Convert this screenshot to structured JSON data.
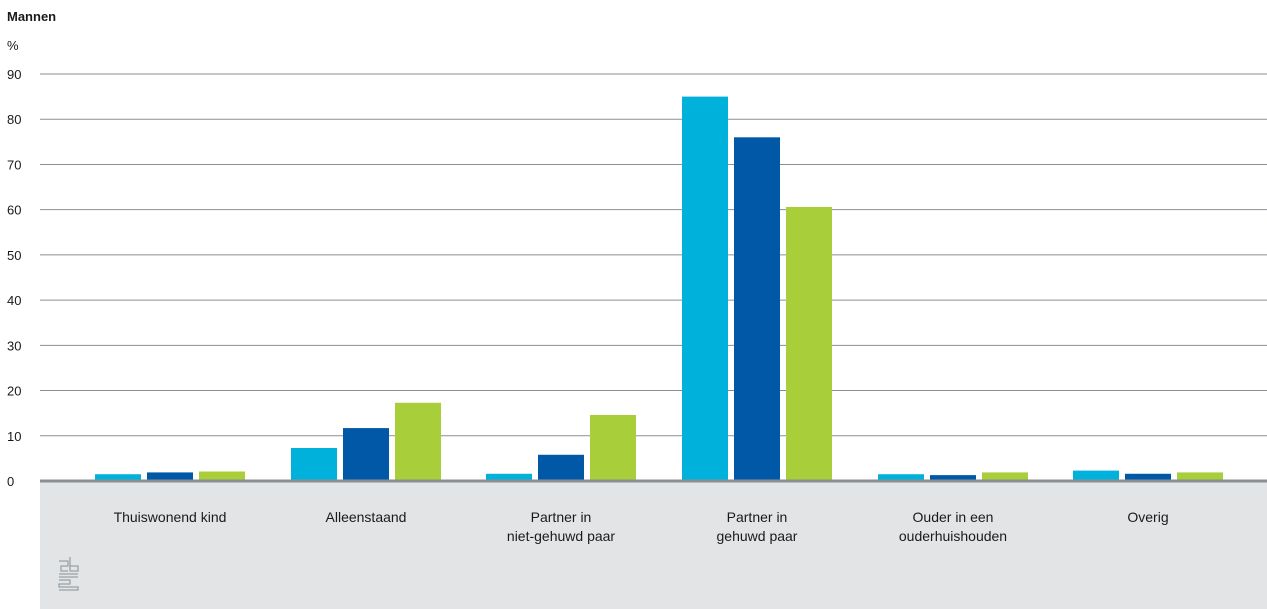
{
  "chart_data": {
    "type": "bar",
    "title": "Mannen",
    "ylabel": "%",
    "xlabel": "",
    "ylim": [
      0,
      90
    ],
    "yticks": [
      0,
      10,
      20,
      30,
      40,
      50,
      60,
      70,
      80,
      90
    ],
    "grid": true,
    "categories": [
      [
        "Thuiswonend kind"
      ],
      [
        "Alleenstaand"
      ],
      [
        "Partner in",
        "niet-gehuwd paar"
      ],
      [
        "Partner in",
        "gehuwd paar"
      ],
      [
        "Ouder in een",
        "ouderhuishouden"
      ],
      [
        "Overig"
      ]
    ],
    "series": [
      {
        "values": [
          1.5,
          7.3,
          1.6,
          85.0,
          1.5,
          2.3
        ],
        "color": "#00b1dc"
      },
      {
        "values": [
          1.9,
          11.7,
          5.8,
          76.0,
          1.3,
          1.6
        ],
        "color": "#0058a7"
      },
      {
        "values": [
          2.1,
          17.3,
          14.6,
          60.6,
          1.9,
          1.9
        ],
        "color": "#a8cf3a"
      }
    ]
  },
  "logo": {
    "name": "cbs-logo-icon",
    "text": "cbs"
  }
}
